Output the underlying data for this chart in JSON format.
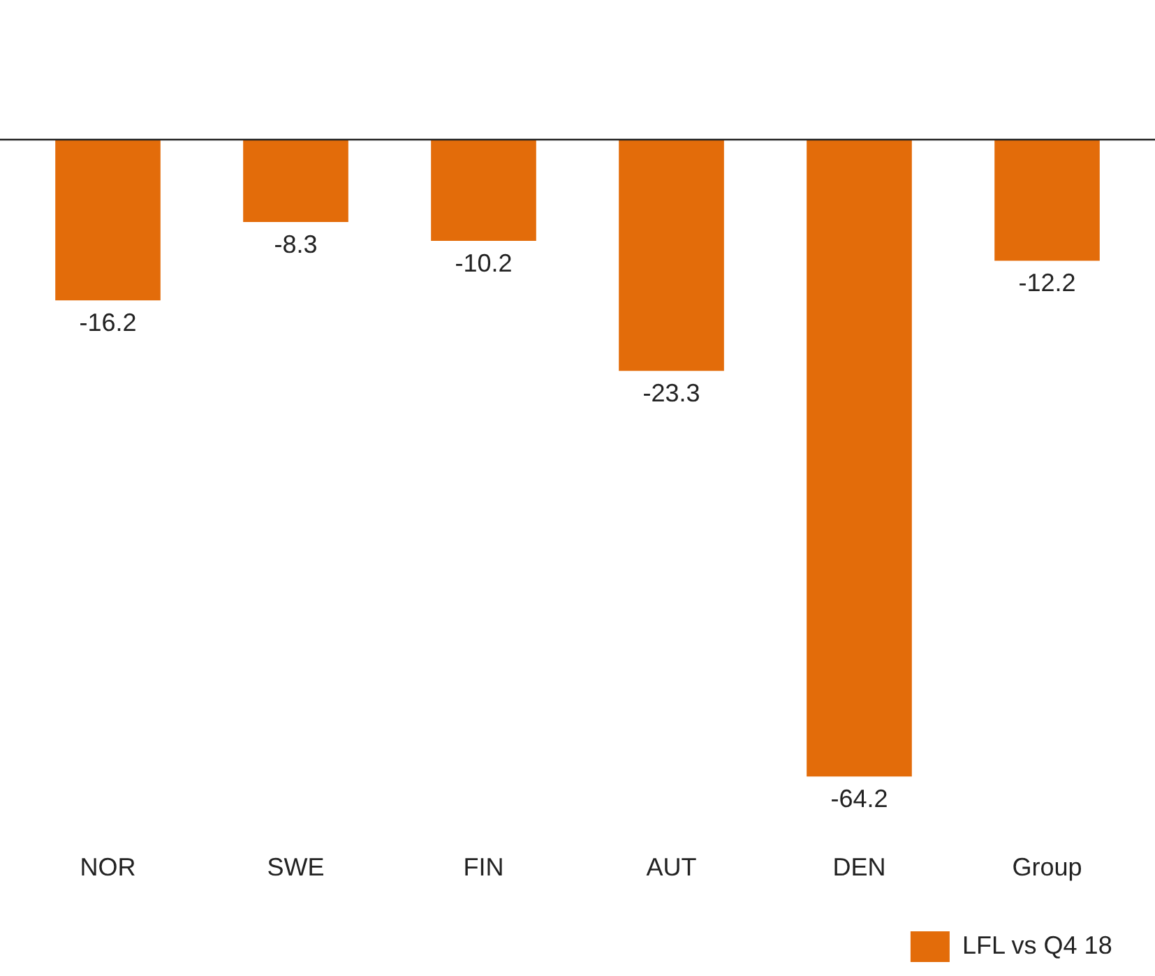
{
  "chart_data": {
    "type": "bar",
    "categories": [
      "NOR",
      "SWE",
      "FIN",
      "AUT",
      "DEN",
      "Group"
    ],
    "series": [
      {
        "name": "LFL vs Q4 18",
        "color": "#e36c0a",
        "values": [
          -16.2,
          -8.3,
          -10.2,
          -23.3,
          -64.2,
          -12.2
        ]
      }
    ],
    "tick_labels": "x",
    "grid": false,
    "data_labels": true,
    "legend": "bottom right"
  }
}
